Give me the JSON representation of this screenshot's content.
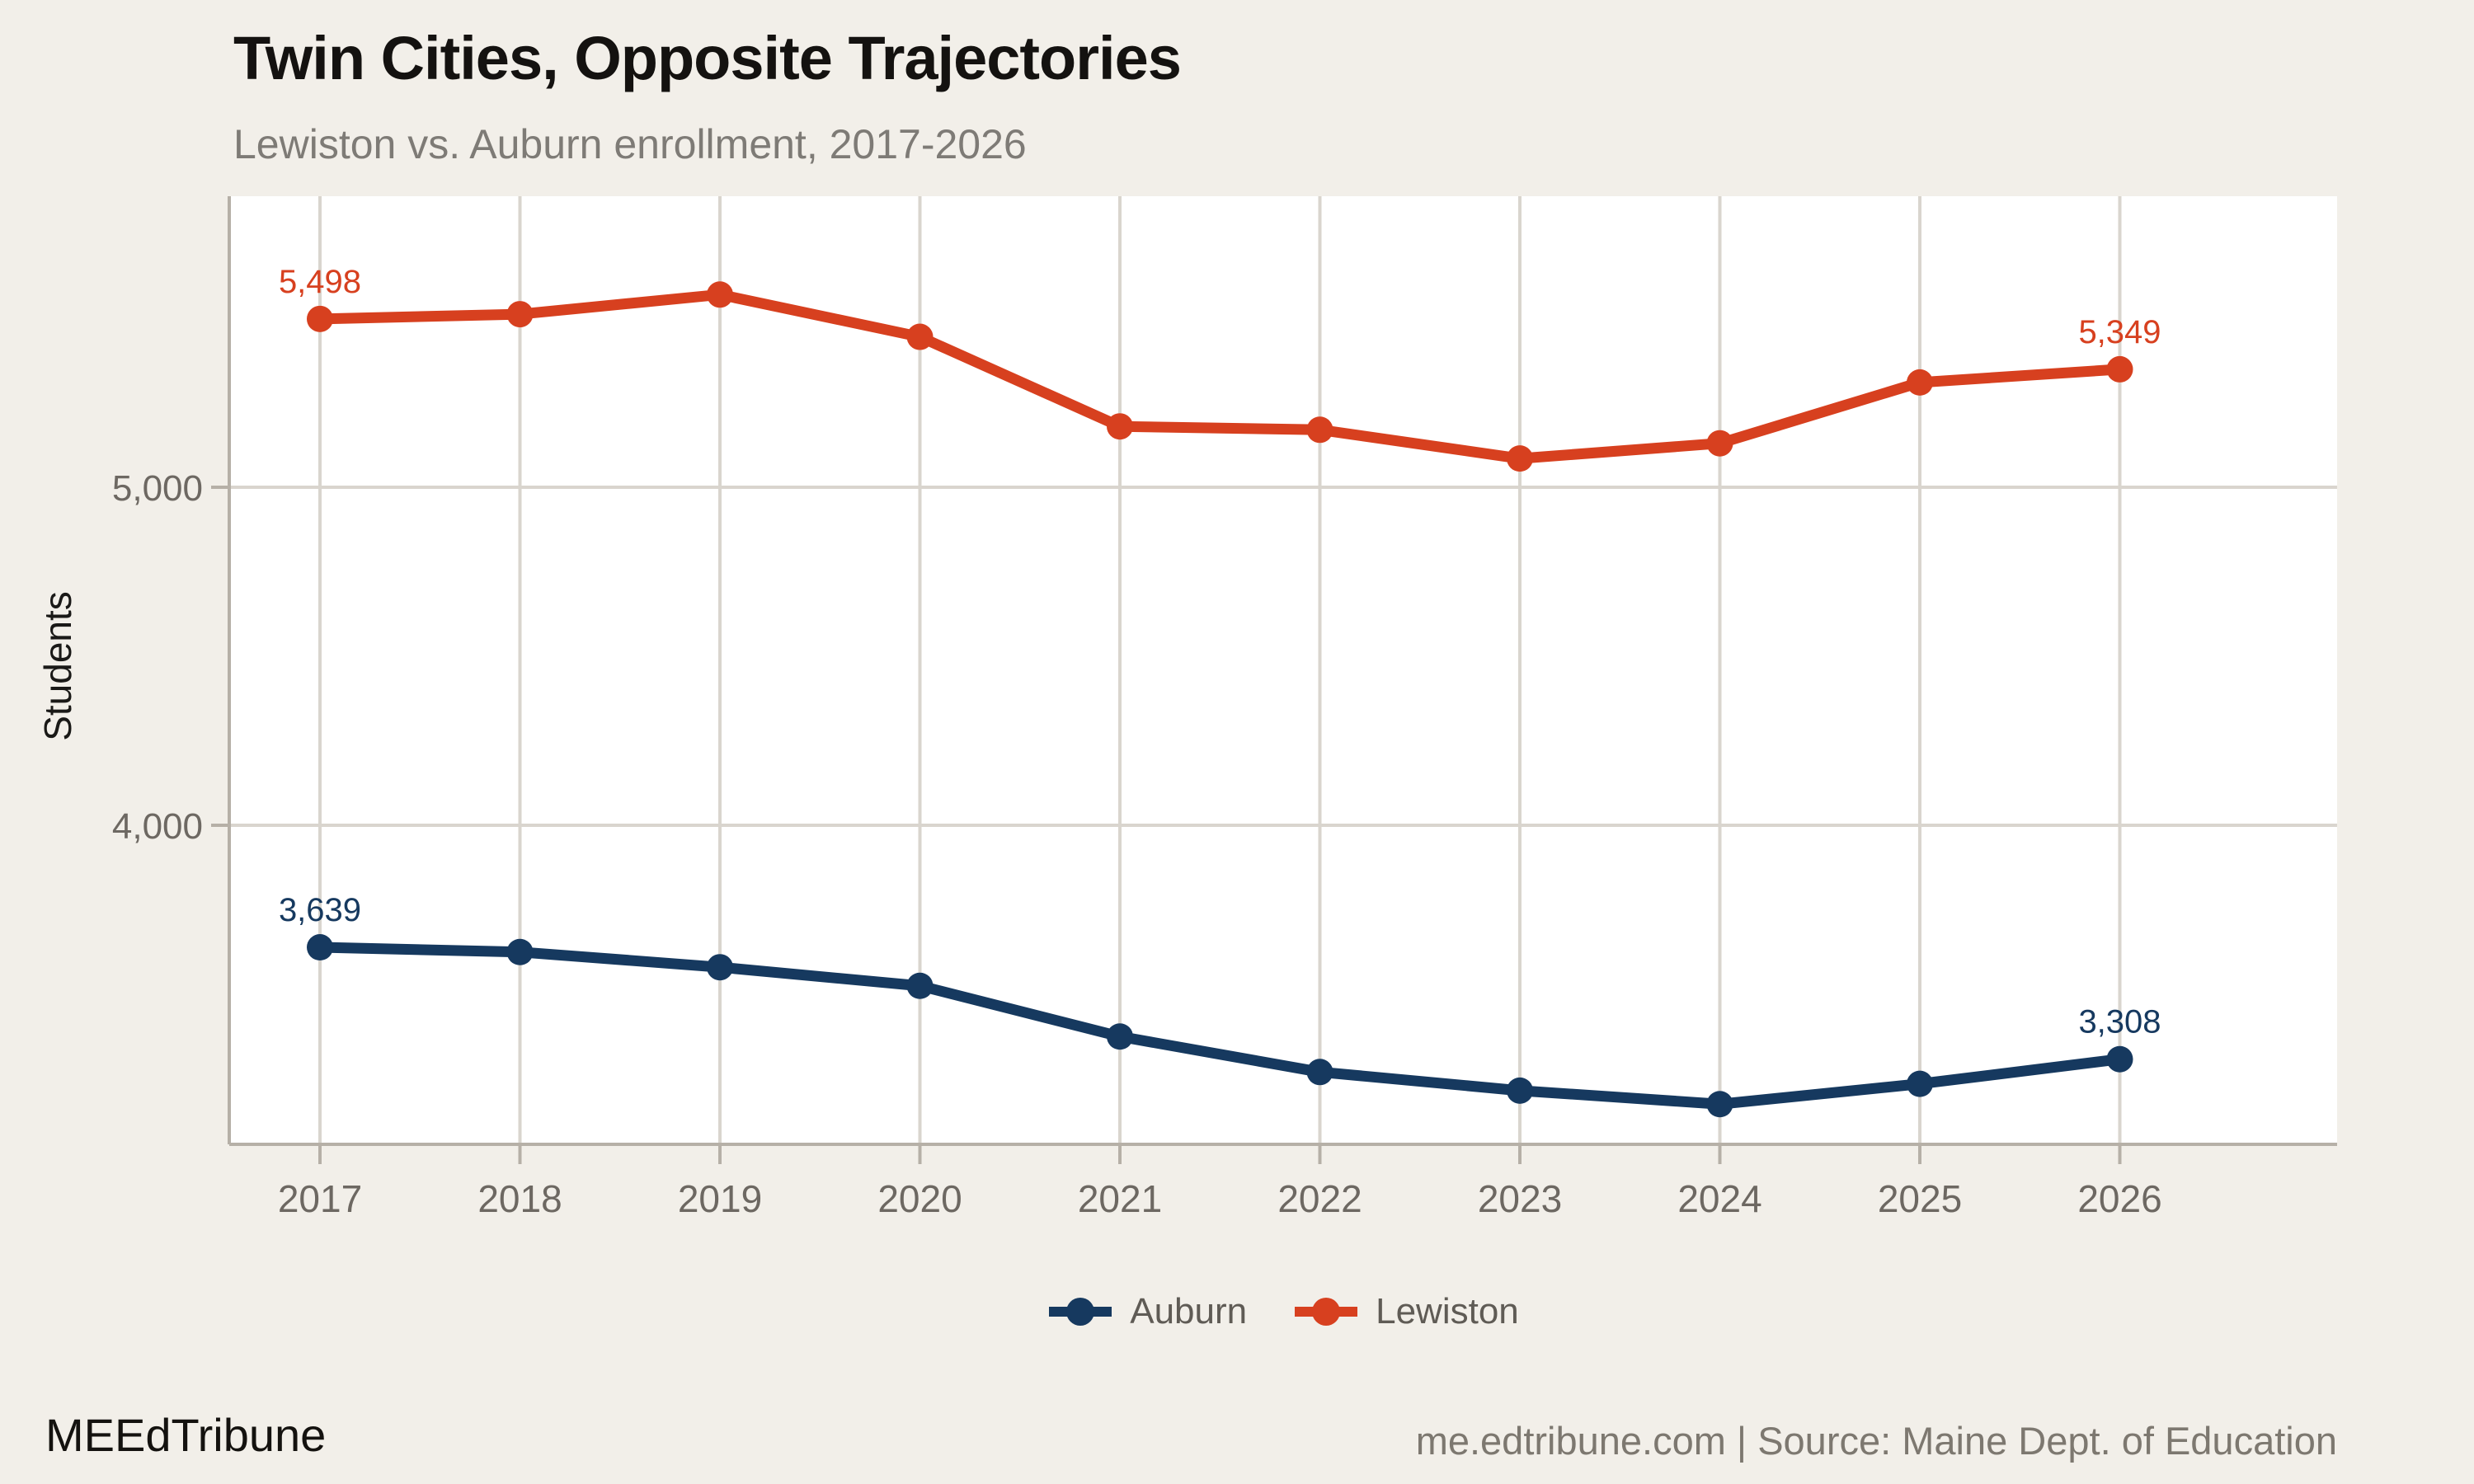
{
  "header": {
    "title": "Twin Cities, Opposite Trajectories",
    "subtitle": "Lewiston vs. Auburn enrollment, 2017-2026"
  },
  "chart_data": {
    "type": "line",
    "title": "Twin Cities, Opposite Trajectories",
    "subtitle": "Lewiston vs. Auburn enrollment, 2017-2026",
    "categories": [
      "2017",
      "2018",
      "2019",
      "2020",
      "2021",
      "2022",
      "2023",
      "2024",
      "2025",
      "2026"
    ],
    "series": [
      {
        "name": "Auburn",
        "color": "#16395f",
        "values": [
          3639,
          3625,
          3580,
          3525,
          3375,
          3270,
          3215,
          3175,
          3235,
          3308
        ]
      },
      {
        "name": "Lewiston",
        "color": "#d7401f",
        "values": [
          5498,
          5512,
          5570,
          5445,
          5180,
          5170,
          5085,
          5130,
          5310,
          5349
        ]
      }
    ],
    "xlabel": "",
    "ylabel": "Students",
    "yticks": [
      {
        "value": 4000,
        "label": "4,000"
      },
      {
        "value": 5000,
        "label": "5,000"
      }
    ],
    "ylim": [
      3055,
      5860
    ],
    "grid": "both",
    "legend_position": "bottom",
    "point_labels": [
      {
        "series": "Lewiston",
        "category": "2017",
        "label": "5,498"
      },
      {
        "series": "Lewiston",
        "category": "2026",
        "label": "5,349"
      },
      {
        "series": "Auburn",
        "category": "2017",
        "label": "3,639"
      },
      {
        "series": "Auburn",
        "category": "2026",
        "label": "3,308"
      }
    ]
  },
  "footer": {
    "brand": "MEEdTribune",
    "attribution": "me.edtribune.com | Source: Maine Dept. of Education"
  },
  "colors": {
    "background": "#f2efe9",
    "panel": "#ffffff",
    "gridline": "#d9d5ce",
    "axis": "#b6b0a7",
    "tick_label": "#6d6862",
    "title": "#141210",
    "subtitle": "#7e7b76",
    "legend_text": "#5f5b55"
  }
}
